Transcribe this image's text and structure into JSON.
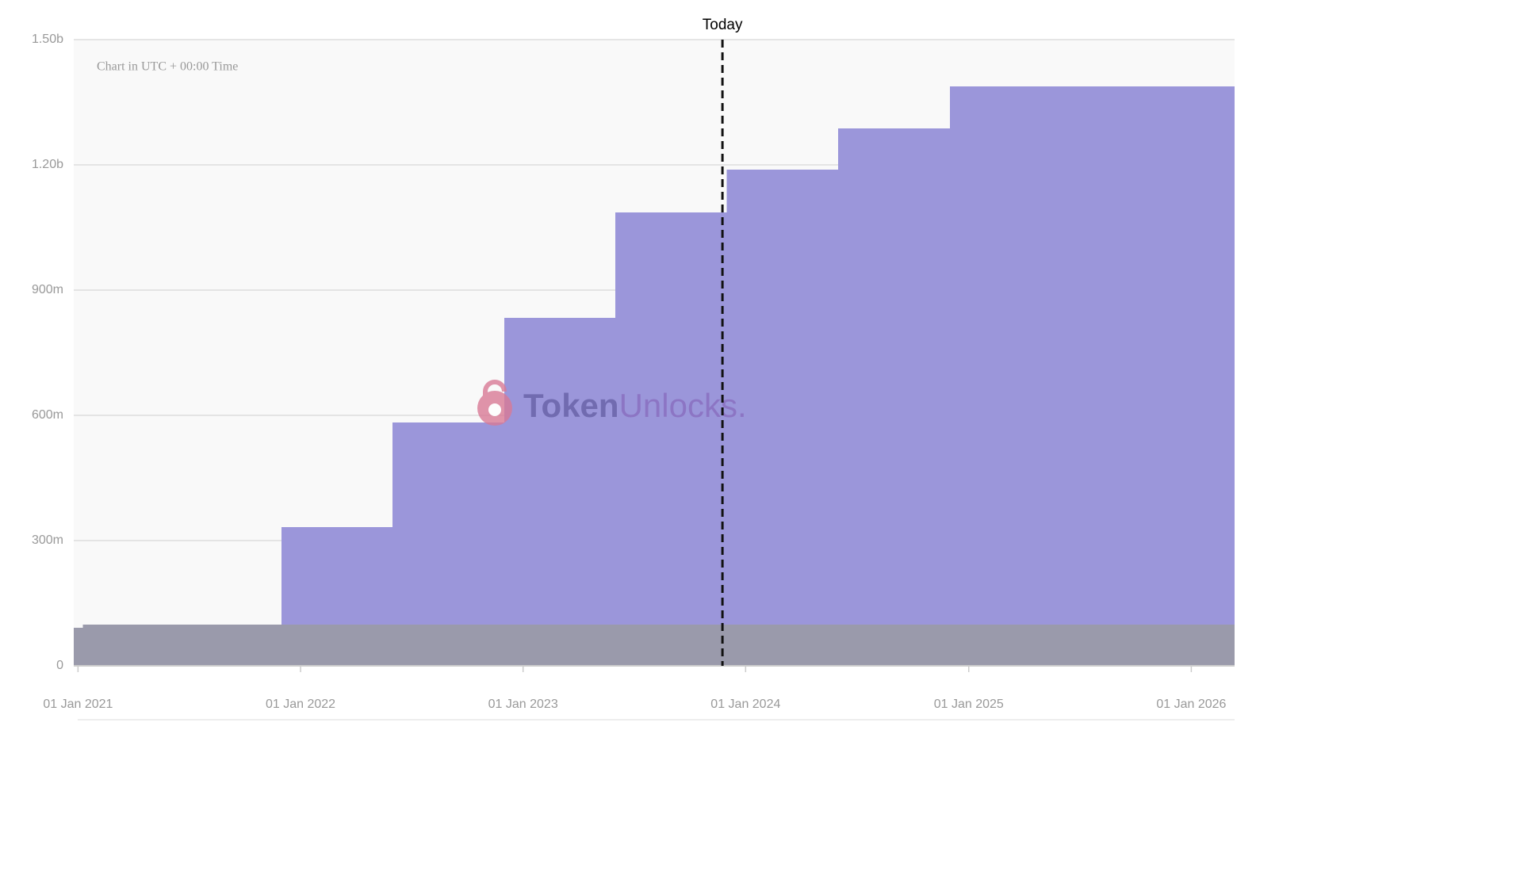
{
  "chart_data": {
    "type": "step-area",
    "note": "Chart in UTC + 00:00 Time",
    "watermark": {
      "bold": "Token",
      "light": "Unlocks."
    },
    "annotation": {
      "label": "Today",
      "x": "2023-11-24"
    },
    "x": [
      "2020-12-25",
      "2021-01-09",
      "2021-12-01",
      "2022-06-01",
      "2022-12-01",
      "2023-06-01",
      "2023-12-01",
      "2024-06-01",
      "2024-12-01"
    ],
    "series": [
      {
        "color": "#9a9aab",
        "values": [
          91000000,
          99000000,
          99000000,
          99000000,
          99000000,
          99000000,
          99000000,
          99000000,
          99000000
        ]
      },
      {
        "color": "#9b96da",
        "values": [
          0,
          0,
          233000000,
          484000000,
          735000000,
          987000000,
          1090000000,
          1188000000,
          1289000000
        ]
      }
    ],
    "xlim": [
      "2020-12-25",
      "2026-03-13"
    ],
    "xticks": [
      {
        "value": "2021-01-01",
        "label": "01 Jan 2021"
      },
      {
        "value": "2022-01-01",
        "label": "01 Jan 2022"
      },
      {
        "value": "2023-01-01",
        "label": "01 Jan 2023"
      },
      {
        "value": "2024-01-01",
        "label": "01 Jan 2024"
      },
      {
        "value": "2025-01-01",
        "label": "01 Jan 2025"
      },
      {
        "value": "2026-01-01",
        "label": "01 Jan 2026"
      }
    ],
    "ylim": [
      0,
      1500000000
    ],
    "yticks": [
      0,
      {
        "value": 300000000,
        "label": "300m"
      },
      {
        "value": 600000000,
        "label": "600m"
      },
      {
        "value": 900000000,
        "label": "900m"
      },
      {
        "value": 1200000000,
        "label": "1.20b"
      },
      {
        "value": 1500000000,
        "label": "1.50b"
      }
    ],
    "grid": true
  }
}
